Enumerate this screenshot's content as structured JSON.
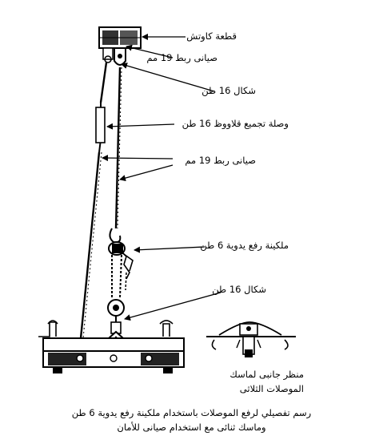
{
  "labels": {
    "rubber_block": "قطعة كاوتش",
    "tie_clamp_top": "صيانى ربط 19 مم",
    "shackle_top": "شكال 16 طن",
    "turnbuckle": "وصلة تجميع قلاووظ 16 طن",
    "tie_clamp_mid": "صيانى ربط 19 مم",
    "chain_hoist": "ملكينة رفع يدوية 6 طن",
    "shackle_bottom": "شكال 16 طن",
    "side_view_line1": "منظر جانبى لماسك",
    "side_view_line2": "الموصلات الثلاثى"
  },
  "caption": {
    "line1": "رسم تفصيلي لرفع الموصلات باستخدام ملكينة رفع يدوية 6 طن",
    "line2": "وماسك ثنائى مع استخدام صيانى للأمان"
  },
  "colors": {
    "ink": "#000000",
    "paper": "#ffffff"
  }
}
